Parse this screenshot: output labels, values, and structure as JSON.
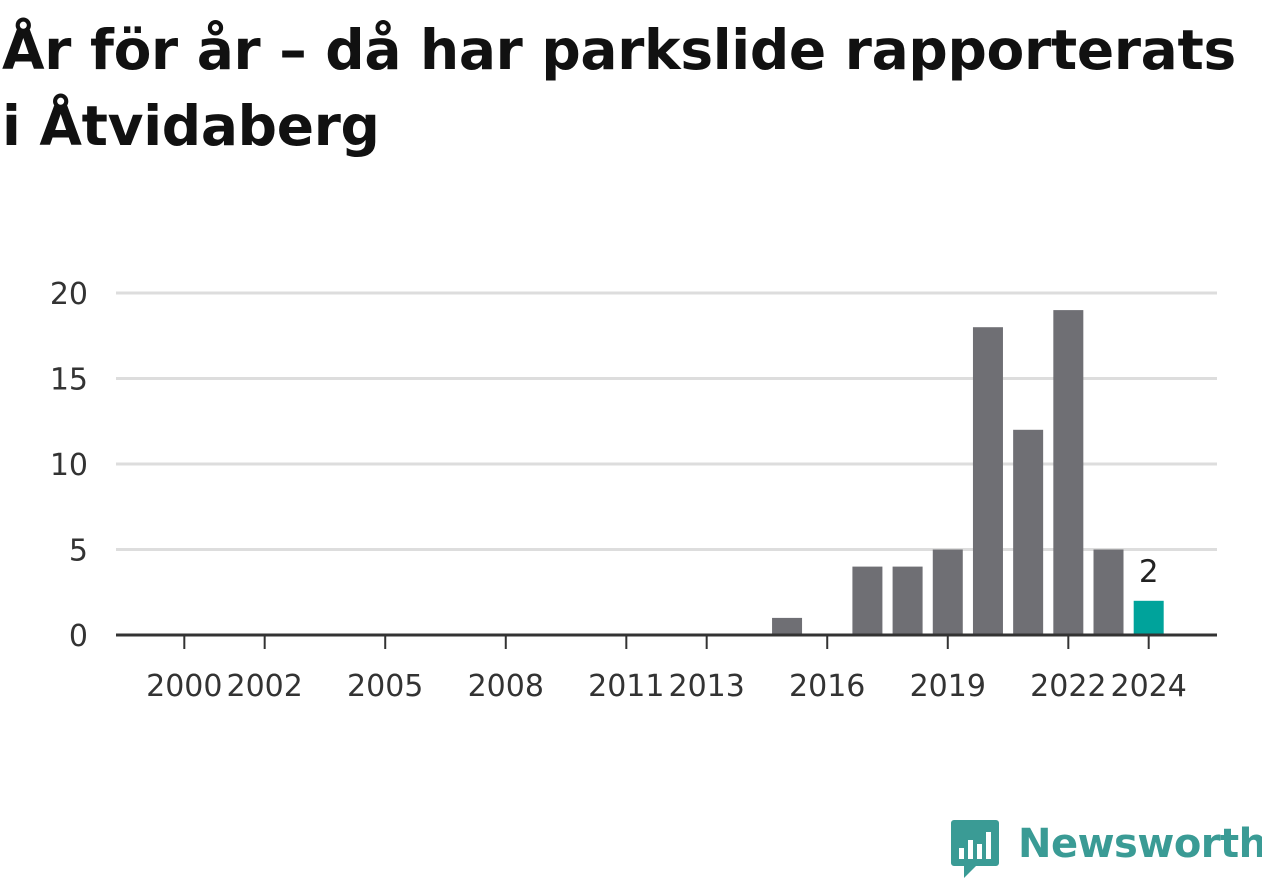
{
  "chart_data": {
    "type": "bar",
    "title": "År för år – då har parkslide rapporterats i Åtvidaberg",
    "x": [
      2015,
      2017,
      2018,
      2019,
      2020,
      2021,
      2022,
      2023,
      2024
    ],
    "values": [
      1,
      4,
      4,
      5,
      18,
      12,
      19,
      5,
      2
    ],
    "x_tick_labels": [
      "2000",
      "2002",
      "2005",
      "2008",
      "2011",
      "2013",
      "2016",
      "2019",
      "2022",
      "2024"
    ],
    "y_ticks": [
      0,
      5,
      10,
      15,
      20
    ],
    "xlim": [
      1998.3,
      2025.7
    ],
    "ylim": [
      0,
      20
    ],
    "highlight": {
      "x": 2024,
      "label": "2"
    },
    "grid": true,
    "colors": {
      "bar": "#6f6f74",
      "highlight": "#00a39b",
      "grid": "#dddddd",
      "axis": "#333333"
    }
  },
  "brand": {
    "name": "Newsworthy",
    "color": "#3a9b95"
  }
}
